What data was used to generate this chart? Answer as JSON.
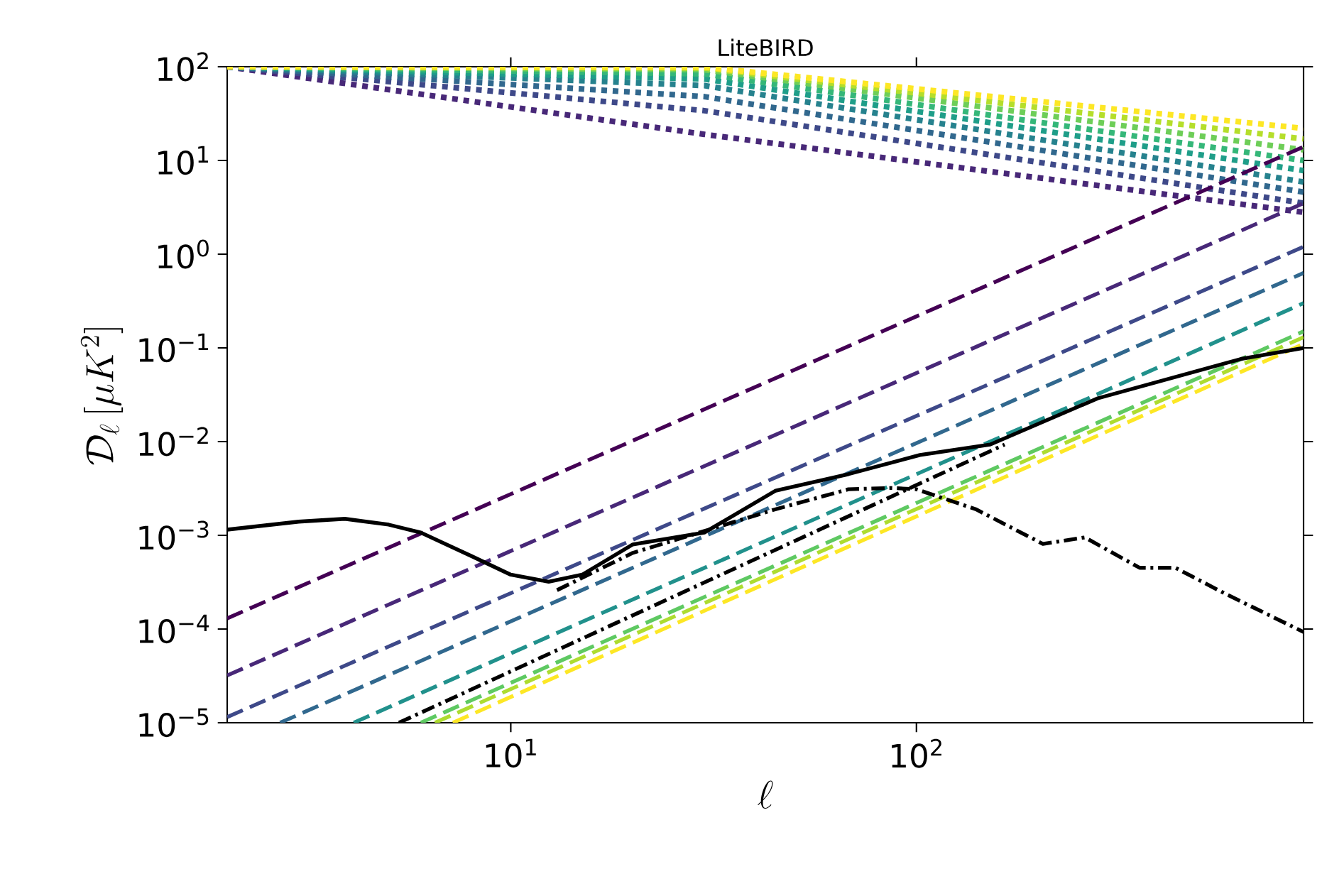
{
  "chart_data": {
    "type": "line",
    "title": "LiteBIRD",
    "xlabel": "\\ell",
    "ylabel": "\\mathcal{D}_\\ell\\,[\\mu K^2]",
    "log": "xy",
    "xlim": [
      2,
      900
    ],
    "ylim": [
      1e-05,
      100
    ],
    "xticks": [
      {
        "value": 10,
        "label": "10$^{1}$"
      },
      {
        "value": 100,
        "label": "10$^{2}$"
      }
    ],
    "yticks": [
      {
        "value": 1e-05,
        "label": "10$^{−5}$"
      },
      {
        "value": 0.0001,
        "label": "10$^{−4}$"
      },
      {
        "value": 0.001,
        "label": "10$^{−3}$"
      },
      {
        "value": 0.01,
        "label": "10$^{−2}$"
      },
      {
        "value": 0.1,
        "label": "10$^{−1}$"
      },
      {
        "value": 1,
        "label": "10$^{0}$"
      },
      {
        "value": 10,
        "label": "10$^{1}$"
      },
      {
        "value": 100,
        "label": "10$^{2}$"
      }
    ],
    "series": [
      {
        "color": "#482878",
        "line_style": "dotted",
        "x": [
          2,
          30,
          900
        ],
        "values": [
          100,
          19,
          2.8
        ]
      },
      {
        "color": "#3e4989",
        "line_style": "dotted",
        "x": [
          2,
          30,
          900
        ],
        "values": [
          100,
          34,
          3.5
        ]
      },
      {
        "color": "#31688e",
        "line_style": "dotted",
        "x": [
          2,
          30,
          900
        ],
        "values": [
          100,
          48,
          4.6
        ]
      },
      {
        "color": "#26828e",
        "line_style": "dotted",
        "x": [
          2,
          30,
          900
        ],
        "values": [
          100,
          63,
          5.9
        ]
      },
      {
        "color": "#1f9e89",
        "line_style": "dotted",
        "x": [
          2,
          30,
          900
        ],
        "values": [
          100,
          74,
          7.8
        ]
      },
      {
        "color": "#35b779",
        "line_style": "dotted",
        "x": [
          2,
          30,
          900
        ],
        "values": [
          100,
          84,
          10
        ]
      },
      {
        "color": "#6ece58",
        "line_style": "dotted",
        "x": [
          2,
          30,
          900
        ],
        "values": [
          100,
          93,
          13
        ]
      },
      {
        "color": "#b5de2b",
        "line_style": "dotted",
        "x": [
          2,
          30,
          900
        ],
        "values": [
          100,
          97,
          17
        ]
      },
      {
        "color": "#fde725",
        "line_style": "dotted",
        "x": [
          2,
          30,
          900
        ],
        "values": [
          100,
          99,
          22
        ]
      },
      {
        "color": "#440154",
        "line_style": "dashed",
        "x": [
          2,
          900
        ],
        "values": [
          0.00013,
          14
        ]
      },
      {
        "color": "#482878",
        "line_style": "dashed",
        "x": [
          2,
          900
        ],
        "values": [
          3.2e-05,
          3.5
        ]
      },
      {
        "color": "#3e4989",
        "line_style": "dashed",
        "x": [
          2,
          900
        ],
        "values": [
          1.15e-05,
          1.2
        ]
      },
      {
        "color": "#31688e",
        "line_style": "dashed",
        "x": [
          2.7,
          900
        ],
        "values": [
          1e-05,
          0.63
        ]
      },
      {
        "color": "#21918c",
        "line_style": "dashed",
        "x": [
          4.1,
          900
        ],
        "values": [
          1e-05,
          0.3
        ]
      },
      {
        "color": "#5ec962",
        "line_style": "dashed",
        "x": [
          6.0,
          900
        ],
        "values": [
          1e-05,
          0.15
        ]
      },
      {
        "color": "#addc30",
        "line_style": "dashed",
        "x": [
          6.5,
          900
        ],
        "values": [
          1e-05,
          0.13
        ]
      },
      {
        "color": "#fde725",
        "line_style": "dashed",
        "x": [
          7.2,
          900
        ],
        "values": [
          1e-05,
          0.11
        ]
      },
      {
        "color": "#000000",
        "line_style": "dashdot",
        "x": [
          5.3,
          165
        ],
        "values": [
          1e-05,
          0.0093
        ]
      },
      {
        "color": "#000000",
        "line_style": "dashdot",
        "x": [
          13,
          20,
          45,
          68,
          87,
          100,
          140,
          205,
          260,
          355,
          435,
          575,
          900
        ],
        "values": [
          0.00026,
          0.00065,
          0.0019,
          0.0031,
          0.0032,
          0.0031,
          0.0019,
          0.00081,
          0.00095,
          0.00045,
          0.00045,
          0.00024,
          9.3e-05
        ]
      },
      {
        "color": "#000000",
        "line_style": "solid",
        "x": [
          2,
          3,
          3.9,
          5,
          6,
          8,
          10,
          12.4,
          15,
          20,
          30,
          45,
          68,
          102,
          152,
          280,
          630,
          900
        ],
        "values": [
          0.00115,
          0.0014,
          0.0015,
          0.0013,
          0.00107,
          0.0006,
          0.00038,
          0.00032,
          0.00038,
          0.0008,
          0.00107,
          0.003,
          0.0045,
          0.0072,
          0.0093,
          0.029,
          0.076,
          0.1
        ]
      }
    ]
  }
}
